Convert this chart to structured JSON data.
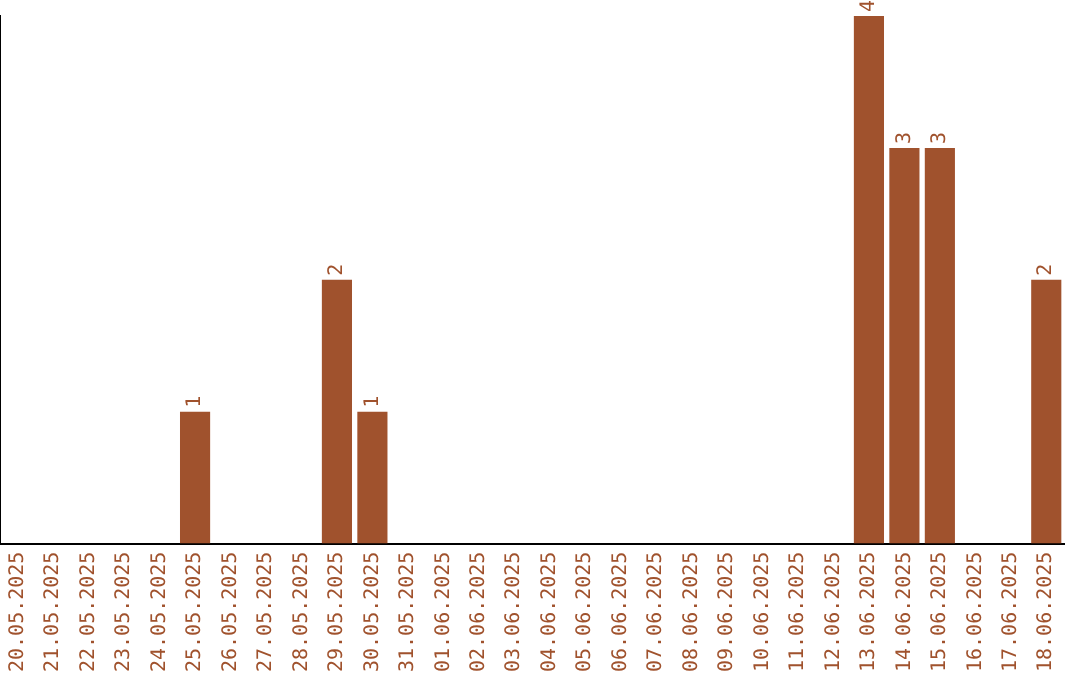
{
  "chart_data": {
    "type": "bar",
    "categories": [
      "20.05.2025",
      "21.05.2025",
      "22.05.2025",
      "23.05.2025",
      "24.05.2025",
      "25.05.2025",
      "26.05.2025",
      "27.05.2025",
      "28.05.2025",
      "29.05.2025",
      "30.05.2025",
      "31.05.2025",
      "01.06.2025",
      "02.06.2025",
      "03.06.2025",
      "04.06.2025",
      "05.06.2025",
      "06.06.2025",
      "07.06.2025",
      "08.06.2025",
      "09.06.2025",
      "10.06.2025",
      "11.06.2025",
      "12.06.2025",
      "13.06.2025",
      "14.06.2025",
      "15.06.2025",
      "16.06.2025",
      "17.06.2025",
      "18.06.2025"
    ],
    "values": [
      0,
      0,
      0,
      0,
      0,
      1,
      0,
      0,
      0,
      2,
      1,
      0,
      0,
      0,
      0,
      0,
      0,
      0,
      0,
      0,
      0,
      0,
      0,
      0,
      4,
      3,
      3,
      0,
      0,
      2
    ],
    "value_labels": [
      null,
      null,
      null,
      null,
      null,
      "1",
      null,
      null,
      null,
      "2",
      "1",
      null,
      null,
      null,
      null,
      null,
      null,
      null,
      null,
      null,
      null,
      null,
      null,
      null,
      "4",
      "3",
      "3",
      null,
      null,
      "2"
    ],
    "color": "#a0522d",
    "grid": false,
    "legend": false,
    "tick_labels": "x"
  }
}
